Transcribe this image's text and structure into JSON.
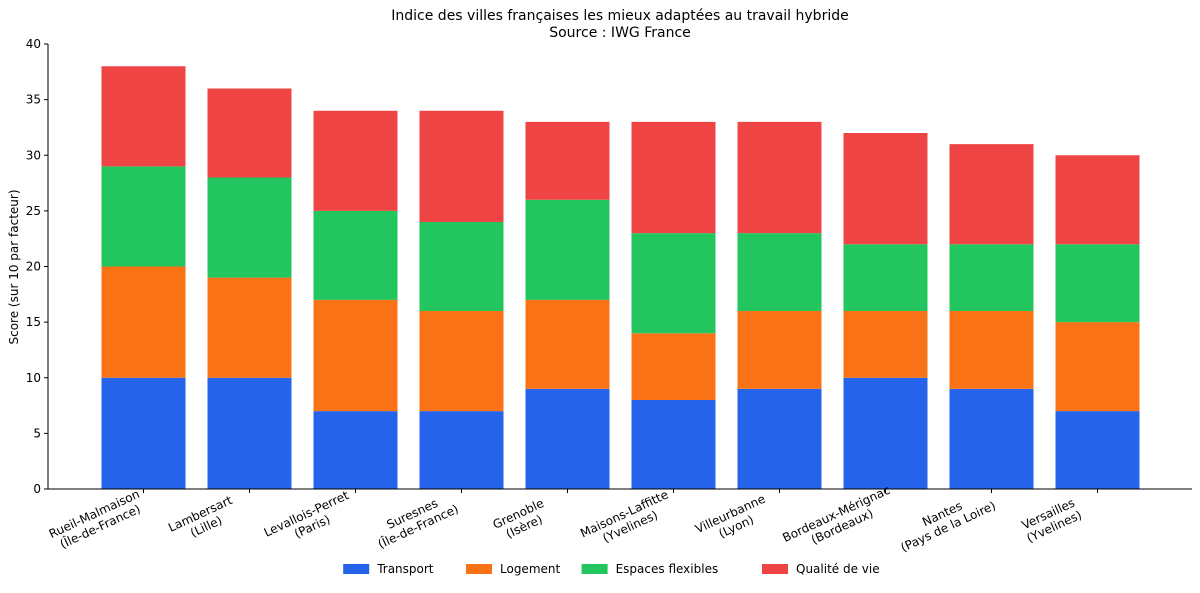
{
  "chart_data": {
    "type": "bar",
    "stacked": true,
    "title": "Indice des villes françaises les mieux adaptées au travail hybride",
    "subtitle": "Source : IWG France",
    "xlabel": "",
    "ylabel": "Score (sur 10 par facteur)",
    "ylim": [
      0,
      40
    ],
    "yticks": [
      0,
      5,
      10,
      15,
      20,
      25,
      30,
      35,
      40
    ],
    "grid": false,
    "legend_position": "bottom-center",
    "categories": [
      [
        "Rueil-Malmaison",
        "(Île-de-France)"
      ],
      [
        "Lambersart",
        "(Lille)"
      ],
      [
        "Levallois-Perret",
        "(Paris)"
      ],
      [
        "Suresnes",
        "(Île-de-France)"
      ],
      [
        "Grenoble",
        "(Isère)"
      ],
      [
        "Maisons-Laffitte",
        "(Yvelines)"
      ],
      [
        "Villeurbanne",
        "(Lyon)"
      ],
      [
        "Bordeaux-Mérignac",
        "(Bordeaux)"
      ],
      [
        "Nantes",
        "(Pays de la Loire)"
      ],
      [
        "Versailles",
        "(Yvelines)"
      ]
    ],
    "series": [
      {
        "name": "Transport",
        "color": "#2563eb",
        "values": [
          10,
          10,
          7,
          7,
          9,
          8,
          9,
          10,
          9,
          7
        ]
      },
      {
        "name": "Logement",
        "color": "#f97316",
        "values": [
          10,
          9,
          10,
          9,
          8,
          6,
          7,
          6,
          7,
          8
        ]
      },
      {
        "name": "Espaces flexibles",
        "color": "#22c55e",
        "values": [
          9,
          9,
          8,
          8,
          9,
          9,
          7,
          6,
          6,
          7
        ]
      },
      {
        "name": "Qualité de vie",
        "color": "#ef4444",
        "values": [
          9,
          8,
          9,
          10,
          7,
          10,
          10,
          10,
          9,
          8
        ]
      }
    ]
  }
}
